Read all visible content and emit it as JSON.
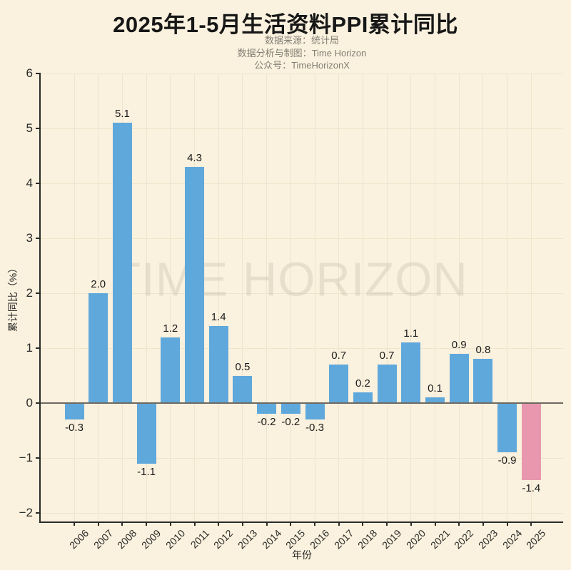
{
  "header": {
    "title": "2025年1-5月生活资料PPI累计同比",
    "subtitle_lines": [
      "数据来源：统计局",
      "数据分析与制图：Time Horizon",
      "公众号：TimeHorizonX"
    ]
  },
  "watermark": "TIME HORIZON",
  "chart_data": {
    "type": "bar",
    "title": "2025年1-5月生活资料PPI累计同比",
    "xlabel": "年份",
    "ylabel": "累计同比（%）",
    "categories": [
      "2006",
      "2007",
      "2008",
      "2009",
      "2010",
      "2011",
      "2012",
      "2013",
      "2014",
      "2015",
      "2016",
      "2017",
      "2018",
      "2019",
      "2020",
      "2021",
      "2022",
      "2023",
      "2024",
      "2025"
    ],
    "values": [
      -0.3,
      2.0,
      5.1,
      -1.1,
      1.2,
      4.3,
      1.4,
      0.5,
      -0.2,
      -0.2,
      -0.3,
      0.7,
      0.2,
      0.7,
      1.1,
      0.1,
      0.9,
      0.8,
      -0.9,
      -1.4
    ],
    "bar_labels": [
      "-0.3",
      "2.0",
      "5.1",
      "-1.1",
      "1.2",
      "4.3",
      "1.4",
      "0.5",
      "-0.2",
      "-0.2",
      "-0.3",
      "0.7",
      "0.2",
      "0.7",
      "1.1",
      "0.1",
      "0.9",
      "0.8",
      "-0.9",
      "-1.4"
    ],
    "yticks": [
      -2,
      -1,
      0,
      1,
      2,
      3,
      4,
      5,
      6
    ],
    "ytick_labels": [
      "−2",
      "−1",
      "0",
      "1",
      "2",
      "3",
      "4",
      "5",
      "6"
    ],
    "ylim": [
      -2.15,
      6.0
    ],
    "grid": true,
    "legend": false,
    "bar_color_default": "#5FA8DC",
    "bar_color_highlight": "#E897AE",
    "highlight_category": "2025"
  },
  "colors": {
    "background": "#FAF1DE",
    "title": "#171717",
    "subtitle": "#827E74",
    "axis": "#2B2B28",
    "zero_line": "#6E6A61",
    "grid": "#EFE5CB",
    "value_label": "#1B1B1B",
    "watermark_text": "#808062"
  }
}
